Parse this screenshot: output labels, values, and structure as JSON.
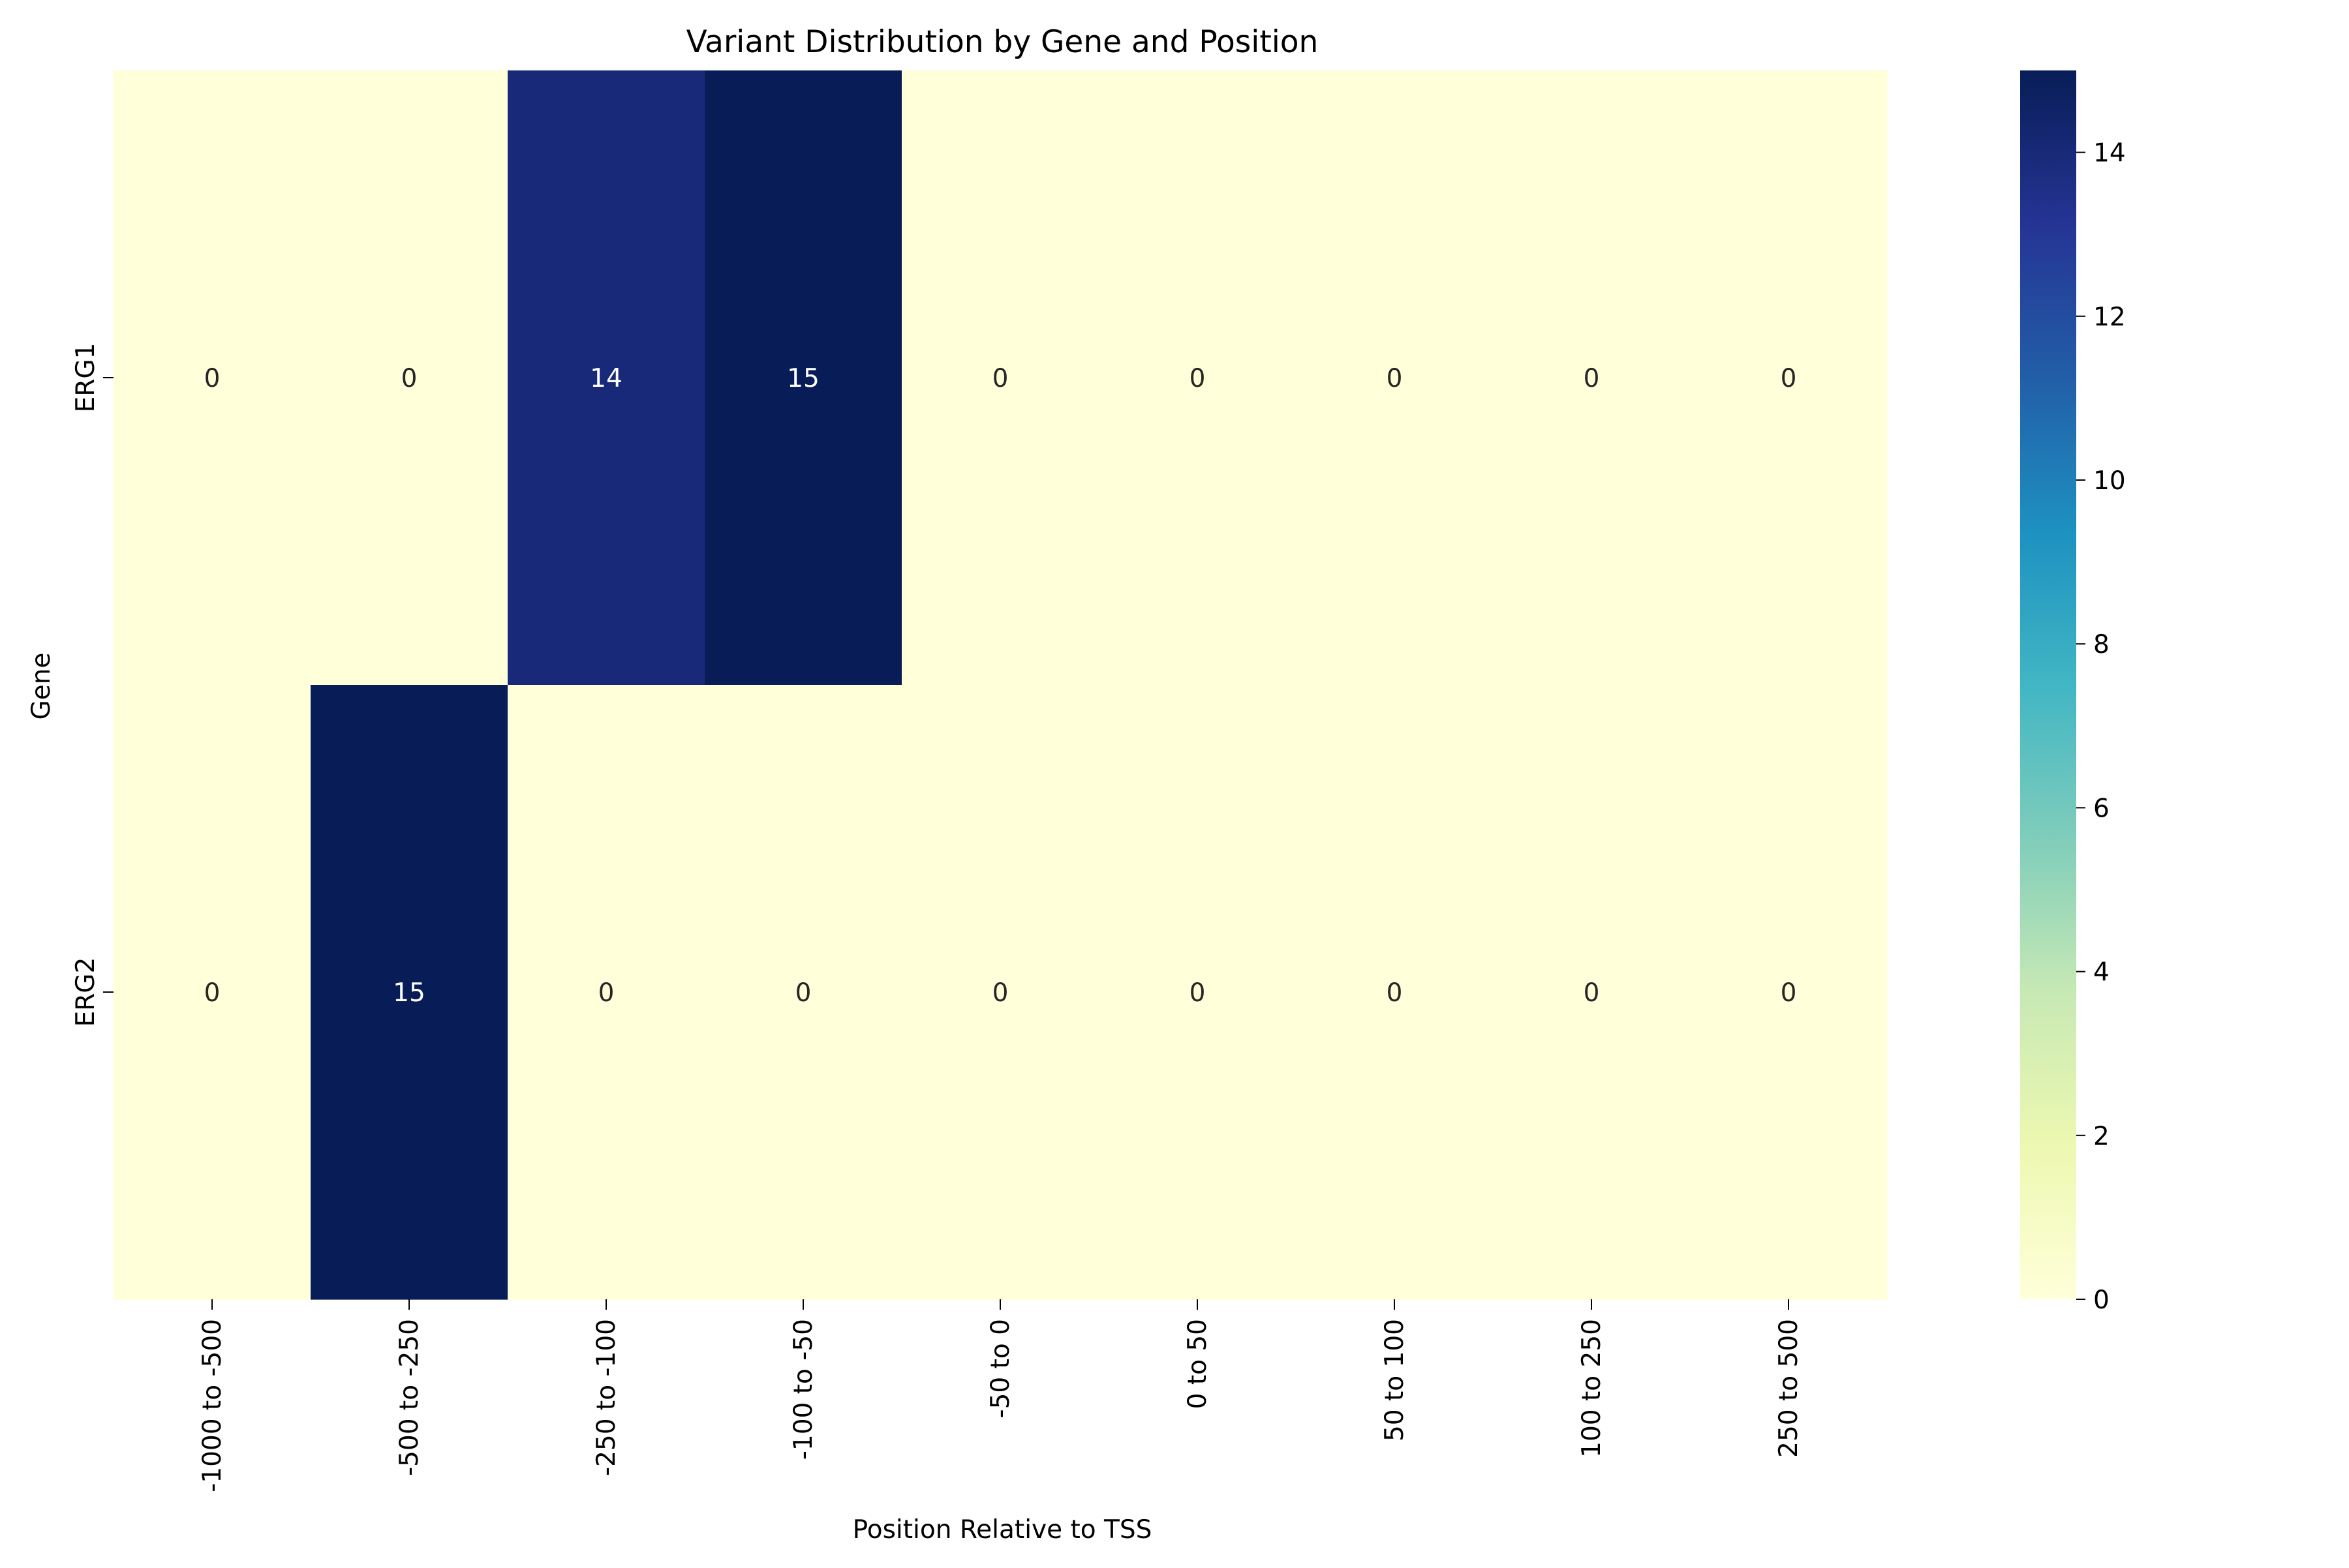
{
  "chart_data": {
    "type": "heatmap",
    "title": "Variant Distribution by Gene and Position",
    "xlabel": "Position Relative to TSS",
    "ylabel": "Gene",
    "x_categories": [
      "-1000 to -500",
      "-500 to -250",
      "-250 to -100",
      "-100 to -50",
      "-50 to 0",
      "0 to 50",
      "50 to 100",
      "100 to 250",
      "250 to 500"
    ],
    "y_categories": [
      "ERG1",
      "ERG2"
    ],
    "values": [
      [
        0,
        0,
        14,
        15,
        0,
        0,
        0,
        0,
        0
      ],
      [
        0,
        15,
        0,
        0,
        0,
        0,
        0,
        0,
        0
      ]
    ],
    "colormap": "YlGnBu",
    "vmin": 0,
    "vmax": 15,
    "colorbar_ticks": [
      0,
      2,
      4,
      6,
      8,
      10,
      12,
      14
    ],
    "annotations": true,
    "colors": {
      "low": "#ffffd9",
      "high": "#081d58",
      "annotation_dark": "#262626",
      "annotation_light": "#ffffff"
    }
  }
}
